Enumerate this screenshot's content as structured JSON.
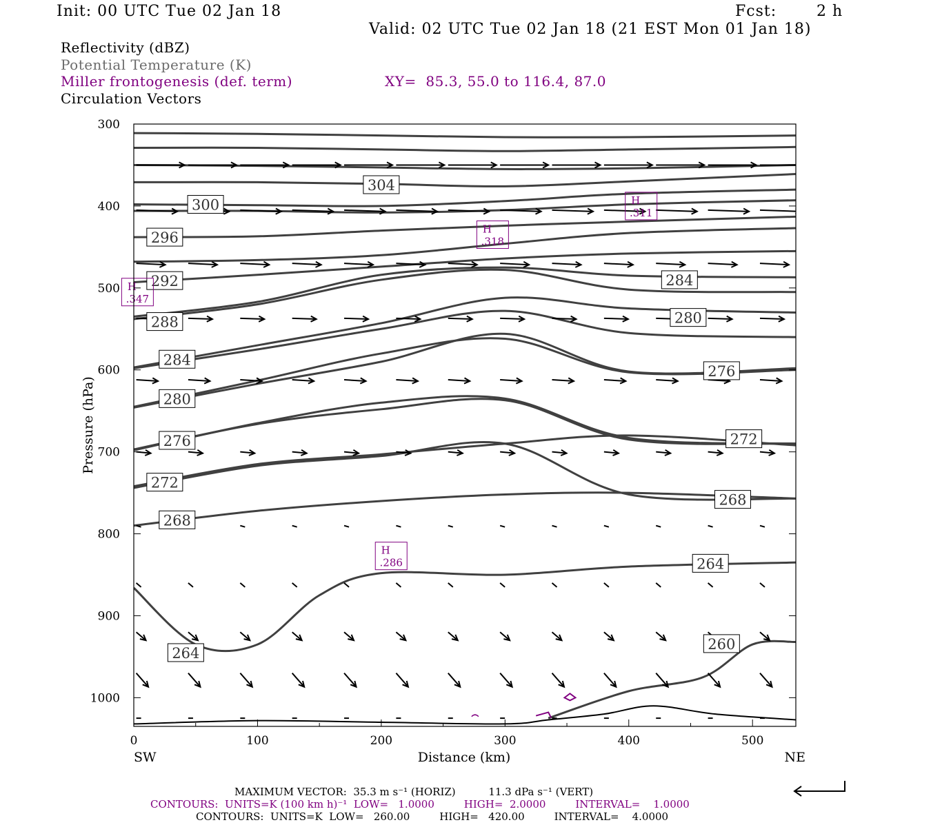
{
  "header": {
    "init": "Init: 00 UTC Tue 02 Jan 18",
    "fcst_label": "Fcst:",
    "fcst_value": "2 h",
    "valid": "Valid: 02 UTC Tue 02 Jan 18 (21 EST Mon 01 Jan 18)"
  },
  "legend": {
    "reflectivity": "Reflectivity (dBZ)",
    "theta": "Potential Temperature (K)",
    "miller": "Miller frontogenesis (def. term)",
    "xy": "XY=  85.3, 55.0 to 116.4, 87.0",
    "vectors": "Circulation Vectors"
  },
  "colors": {
    "theta": "#404040",
    "miller": "#800080",
    "vectors": "#000000",
    "terrain": "#000000"
  },
  "chart_data": {
    "type": "line",
    "title": "",
    "xlabel": "Distance (km)",
    "ylabel": "Pressure (hPa)",
    "xlim": [
      0,
      535
    ],
    "ylim": [
      1035,
      300
    ],
    "x_ticks": [
      0,
      100,
      200,
      300,
      400,
      500
    ],
    "y_ticks": [
      300,
      400,
      500,
      600,
      700,
      800,
      900,
      1000
    ],
    "x_end_labels": {
      "left": "SW",
      "right": "NE"
    },
    "theta_contours": [
      {
        "label": "304",
        "points": [
          [
            0,
            311
          ],
          [
            100,
            312
          ],
          [
            200,
            314
          ],
          [
            300,
            316
          ],
          [
            400,
            316
          ],
          [
            535,
            314
          ]
        ]
      },
      {
        "label": "",
        "points": [
          [
            0,
            329
          ],
          [
            100,
            329
          ],
          [
            200,
            331
          ],
          [
            300,
            333
          ],
          [
            400,
            331
          ],
          [
            535,
            328
          ]
        ]
      },
      {
        "label": "",
        "points": [
          [
            0,
            350
          ],
          [
            100,
            351
          ],
          [
            200,
            353
          ],
          [
            300,
            355
          ],
          [
            400,
            354
          ],
          [
            535,
            350
          ]
        ]
      },
      {
        "label": "304",
        "points": [
          [
            0,
            371
          ],
          [
            100,
            371
          ],
          [
            200,
            373
          ],
          [
            300,
            376
          ],
          [
            400,
            370
          ],
          [
            535,
            361
          ]
        ]
      },
      {
        "label": "300",
        "points": [
          [
            0,
            398
          ],
          [
            100,
            399
          ],
          [
            200,
            400
          ],
          [
            300,
            394
          ],
          [
            400,
            385
          ],
          [
            535,
            380
          ]
        ]
      },
      {
        "label": "",
        "points": [
          [
            0,
            406
          ],
          [
            100,
            406
          ],
          [
            200,
            408
          ],
          [
            300,
            405
          ],
          [
            400,
            398
          ],
          [
            535,
            393
          ]
        ]
      },
      {
        "label": "296",
        "points": [
          [
            0,
            438
          ],
          [
            100,
            437
          ],
          [
            200,
            430
          ],
          [
            300,
            424
          ],
          [
            400,
            419
          ],
          [
            535,
            413
          ]
        ]
      },
      {
        "label": "",
        "points": [
          [
            0,
            468
          ],
          [
            100,
            466
          ],
          [
            200,
            460
          ],
          [
            300,
            446
          ],
          [
            400,
            433
          ],
          [
            535,
            427
          ]
        ]
      },
      {
        "label": "292",
        "points": [
          [
            0,
            493
          ],
          [
            100,
            484
          ],
          [
            200,
            474
          ],
          [
            300,
            464
          ],
          [
            400,
            458
          ],
          [
            535,
            455
          ]
        ]
      },
      {
        "label": "284",
        "points": [
          [
            0,
            535
          ],
          [
            100,
            517
          ],
          [
            200,
            484
          ],
          [
            300,
            475
          ],
          [
            400,
            485
          ],
          [
            535,
            487
          ]
        ]
      },
      {
        "label": "288",
        "points": [
          [
            0,
            538
          ],
          [
            100,
            520
          ],
          [
            200,
            490
          ],
          [
            300,
            478
          ],
          [
            400,
            502
          ],
          [
            535,
            505
          ]
        ]
      },
      {
        "label": "280",
        "points": [
          [
            0,
            597
          ],
          [
            100,
            570
          ],
          [
            200,
            543
          ],
          [
            300,
            512
          ],
          [
            400,
            525
          ],
          [
            535,
            530
          ]
        ]
      },
      {
        "label": "284",
        "points": [
          [
            0,
            598
          ],
          [
            100,
            575
          ],
          [
            200,
            550
          ],
          [
            300,
            528
          ],
          [
            400,
            555
          ],
          [
            535,
            560
          ]
        ]
      },
      {
        "label": "276",
        "points": [
          [
            0,
            645
          ],
          [
            100,
            613
          ],
          [
            200,
            580
          ],
          [
            300,
            562
          ],
          [
            400,
            603
          ],
          [
            535,
            600
          ]
        ]
      },
      {
        "label": "280",
        "points": [
          [
            0,
            646
          ],
          [
            100,
            617
          ],
          [
            200,
            590
          ],
          [
            300,
            556
          ],
          [
            400,
            602
          ],
          [
            535,
            598
          ]
        ]
      },
      {
        "label": "272",
        "points": [
          [
            0,
            697
          ],
          [
            100,
            666
          ],
          [
            200,
            648
          ],
          [
            300,
            637
          ],
          [
            400,
            685
          ],
          [
            535,
            690
          ]
        ]
      },
      {
        "label": "276",
        "points": [
          [
            0,
            698
          ],
          [
            100,
            665
          ],
          [
            200,
            640
          ],
          [
            300,
            635
          ],
          [
            400,
            683
          ],
          [
            535,
            690
          ]
        ]
      },
      {
        "label": "268",
        "points": [
          [
            0,
            744
          ],
          [
            100,
            717
          ],
          [
            200,
            705
          ],
          [
            300,
            690
          ],
          [
            400,
            752
          ],
          [
            535,
            757
          ]
        ]
      },
      {
        "label": "272",
        "points": [
          [
            0,
            742
          ],
          [
            100,
            715
          ],
          [
            200,
            703
          ],
          [
            300,
            690
          ],
          [
            400,
            680
          ],
          [
            535,
            692
          ]
        ]
      },
      {
        "label": "268",
        "points": [
          [
            0,
            790
          ],
          [
            100,
            772
          ],
          [
            200,
            760
          ],
          [
            300,
            752
          ],
          [
            400,
            750
          ],
          [
            535,
            757
          ]
        ]
      },
      {
        "label": "264",
        "points": [
          [
            0,
            866
          ],
          [
            50,
            935
          ],
          [
            100,
            935
          ],
          [
            150,
            875
          ],
          [
            200,
            848
          ],
          [
            300,
            850
          ],
          [
            400,
            840
          ],
          [
            535,
            835
          ]
        ]
      },
      {
        "label": "260",
        "points": [
          [
            335,
            1025
          ],
          [
            400,
            992
          ],
          [
            460,
            975
          ],
          [
            500,
            935
          ],
          [
            535,
            932
          ]
        ]
      }
    ],
    "theta_labels": [
      {
        "text": "304",
        "x": 200,
        "p": 374
      },
      {
        "text": "300",
        "x": 58,
        "p": 398
      },
      {
        "text": "296",
        "x": 25,
        "p": 438
      },
      {
        "text": "292",
        "x": 25,
        "p": 491
      },
      {
        "text": "288",
        "x": 25,
        "p": 541
      },
      {
        "text": "284",
        "x": 35,
        "p": 587
      },
      {
        "text": "280",
        "x": 35,
        "p": 635
      },
      {
        "text": "276",
        "x": 35,
        "p": 686
      },
      {
        "text": "272",
        "x": 25,
        "p": 737
      },
      {
        "text": "268",
        "x": 35,
        "p": 783
      },
      {
        "text": "264",
        "x": 42,
        "p": 945
      },
      {
        "text": "284",
        "x": 441,
        "p": 490
      },
      {
        "text": "280",
        "x": 448,
        "p": 536
      },
      {
        "text": "276",
        "x": 475,
        "p": 601
      },
      {
        "text": "272",
        "x": 493,
        "p": 684
      },
      {
        "text": "268",
        "x": 484,
        "p": 758
      },
      {
        "text": "264",
        "x": 466,
        "p": 836
      },
      {
        "text": "260",
        "x": 475,
        "p": 934
      }
    ],
    "frontogenesis_max": [
      {
        "label": "H",
        "value": ".347",
        "x": 3,
        "p": 505
      },
      {
        "label": "H",
        "value": ".318",
        "x": 290,
        "p": 435
      },
      {
        "label": "H",
        "value": ".311",
        "x": 410,
        "p": 400
      },
      {
        "label": "H",
        "value": ".286",
        "x": 208,
        "p": 827
      }
    ],
    "vector_rows": [
      {
        "p": 350,
        "u": 1.0,
        "w": 0
      },
      {
        "p": 405,
        "u": 0.85,
        "w": 0.05
      },
      {
        "p": 470,
        "u": 0.6,
        "w": 0.05
      },
      {
        "p": 537,
        "u": 0.5,
        "w": 0.03
      },
      {
        "p": 612,
        "u": 0.45,
        "w": 0.05
      },
      {
        "p": 700,
        "u": 0.3,
        "w": 0.05
      },
      {
        "p": 790,
        "u": 0.1,
        "w": 0.05
      },
      {
        "p": 860,
        "u": 0.1,
        "w": 0.15
      },
      {
        "p": 920,
        "u": 0.2,
        "w": 0.3
      },
      {
        "p": 970,
        "u": 0.25,
        "w": 0.5
      },
      {
        "p": 1025,
        "u": 0.1,
        "w": 0
      }
    ],
    "terrain": {
      "points": [
        [
          0,
          1032
        ],
        [
          100,
          1028
        ],
        [
          200,
          1030
        ],
        [
          300,
          1032
        ],
        [
          335,
          1027
        ],
        [
          380,
          1020
        ],
        [
          420,
          1010
        ],
        [
          470,
          1020
        ],
        [
          535,
          1027
        ]
      ]
    }
  },
  "footer": {
    "max_vector": "MAXIMUM VECTOR:  35.3 m s⁻¹ (HORIZ)          11.3 dPa s⁻¹ (VERT)",
    "contours1": "CONTOURS:  UNITS=K (100 km h)⁻¹  LOW=   1.0000         HIGH=  2.0000         INTERVAL=    1.0000",
    "contours2": "CONTOURS:  UNITS=K  LOW=   260.00         HIGH=   420.00         INTERVAL=    4.0000"
  }
}
